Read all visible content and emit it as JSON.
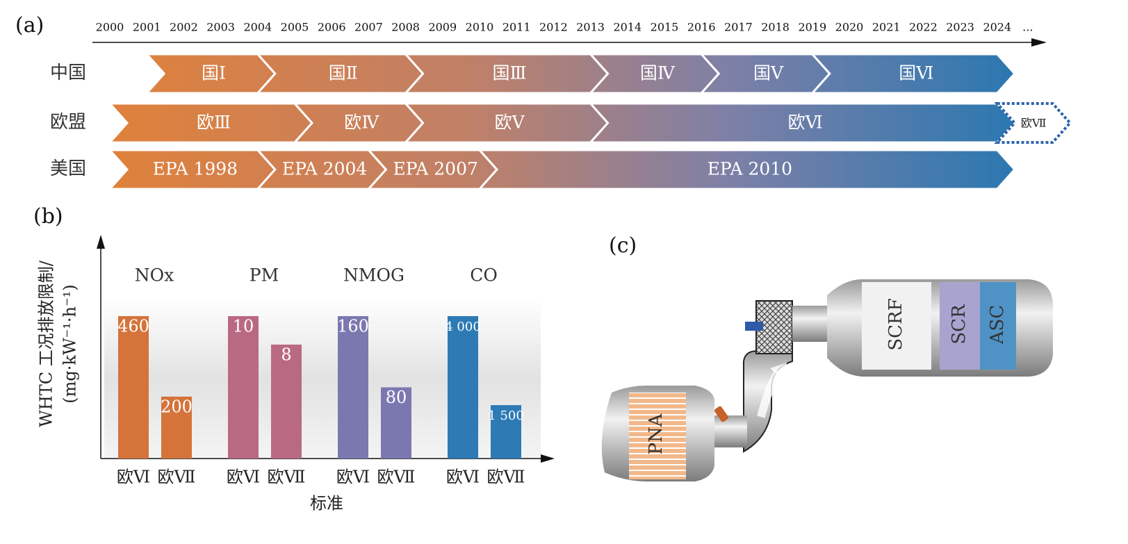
{
  "panel_a": {
    "label": "(a)",
    "years": [
      2000,
      2001,
      2002,
      2003,
      2004,
      2005,
      2006,
      2007,
      2008,
      2009,
      2010,
      2011,
      2012,
      2013,
      2014,
      2015,
      2016,
      2017,
      2018,
      2019,
      2020,
      2021,
      2022,
      2023,
      2024
    ],
    "more": "...",
    "rows": [
      {
        "label": "中国",
        "stages": [
          {
            "label": "国Ⅰ",
            "start": 2001,
            "end": 2004
          },
          {
            "label": "国Ⅱ",
            "start": 2004,
            "end": 2008
          },
          {
            "label": "国Ⅲ",
            "start": 2008,
            "end": 2013
          },
          {
            "label": "国Ⅳ",
            "start": 2013,
            "end": 2016
          },
          {
            "label": "国Ⅴ",
            "start": 2016,
            "end": 2019
          },
          {
            "label": "国Ⅵ",
            "start": 2019,
            "end": 2024
          }
        ]
      },
      {
        "label": "欧盟",
        "stages": [
          {
            "label": "欧Ⅲ",
            "start": 2000,
            "end": 2005
          },
          {
            "label": "欧Ⅳ",
            "start": 2005,
            "end": 2008
          },
          {
            "label": "欧Ⅴ",
            "start": 2008,
            "end": 2013
          },
          {
            "label": "欧Ⅵ",
            "start": 2013,
            "end": 2024
          },
          {
            "label": "欧Ⅶ",
            "start": 2024,
            "end": 2025.5,
            "dashed": true
          }
        ]
      },
      {
        "label": "美国",
        "stages": [
          {
            "label": "EPA 1998",
            "start": 2000,
            "end": 2004
          },
          {
            "label": "EPA 2004",
            "start": 2004,
            "end": 2007
          },
          {
            "label": "EPA 2007",
            "start": 2007,
            "end": 2010
          },
          {
            "label": "EPA 2010",
            "start": 2010,
            "end": 2024
          }
        ]
      }
    ]
  },
  "panel_b": {
    "label": "(b)",
    "y_label": [
      "WHTC 工况排放限制/",
      "(mg·kW⁻¹·h⁻¹)"
    ],
    "x_label": "标准",
    "groups": [
      {
        "name": "NOx",
        "color": "#d4733a",
        "categories": [
          "欧Ⅵ",
          "欧Ⅶ"
        ],
        "values": [
          460,
          200
        ]
      },
      {
        "name": "PM",
        "color": "#b96a82",
        "categories": [
          "欧Ⅵ",
          "欧Ⅶ"
        ],
        "values": [
          10,
          8
        ]
      },
      {
        "name": "NMOG",
        "color": "#7b78b0",
        "categories": [
          "欧Ⅵ",
          "欧Ⅶ"
        ],
        "values": [
          160,
          80
        ]
      },
      {
        "name": "CO",
        "color": "#2d7ab5",
        "categories": [
          "欧Ⅵ",
          "欧Ⅶ"
        ],
        "values": [
          4000,
          1500
        ],
        "value_labels": [
          "4 000",
          "1 500"
        ]
      }
    ]
  },
  "panel_c": {
    "label": "(c)",
    "components": [
      "PNA",
      "SCRF",
      "SCR",
      "ASC"
    ]
  }
}
